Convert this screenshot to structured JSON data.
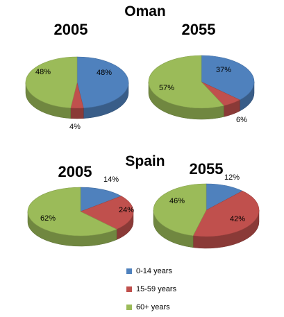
{
  "categories": [
    "0-14 years",
    "15-59 years",
    "60+ years"
  ],
  "colors": {
    "0-14 years": "#4F81BD",
    "15-59 years": "#C0504D",
    "60+ years": "#9BBB59"
  },
  "legend": [
    {
      "label": "0-14 years",
      "color": "#4F81BD"
    },
    {
      "label": "15-59 years",
      "color": "#C0504D"
    },
    {
      "label": "60+ years",
      "color": "#9BBB59"
    }
  ],
  "sections": [
    {
      "title": "Oman",
      "years": [
        "2005",
        "2055"
      ]
    },
    {
      "title": "Spain",
      "years": [
        "2005",
        "2055"
      ]
    }
  ],
  "chart_data": [
    {
      "type": "pie",
      "title": "Oman",
      "subtitle": "2005",
      "categories": [
        "0-14 years",
        "15-59 years",
        "60+ years"
      ],
      "values": [
        48,
        4,
        48
      ],
      "labels": [
        "48%",
        "4%",
        "48%"
      ]
    },
    {
      "type": "pie",
      "title": "Oman",
      "subtitle": "2055",
      "categories": [
        "0-14 years",
        "15-59 years",
        "60+ years"
      ],
      "values": [
        37,
        6,
        57
      ],
      "labels": [
        "37%",
        "6%",
        "57%"
      ]
    },
    {
      "type": "pie",
      "title": "Spain",
      "subtitle": "2005",
      "categories": [
        "0-14 years",
        "15-59 years",
        "60+ years"
      ],
      "values": [
        14,
        24,
        62
      ],
      "labels": [
        "14%",
        "24%",
        "62%"
      ]
    },
    {
      "type": "pie",
      "title": "Spain",
      "subtitle": "2055",
      "categories": [
        "0-14 years",
        "15-59 years",
        "60+ years"
      ],
      "values": [
        12,
        42,
        46
      ],
      "labels": [
        "12%",
        "42%",
        "46%"
      ]
    }
  ]
}
